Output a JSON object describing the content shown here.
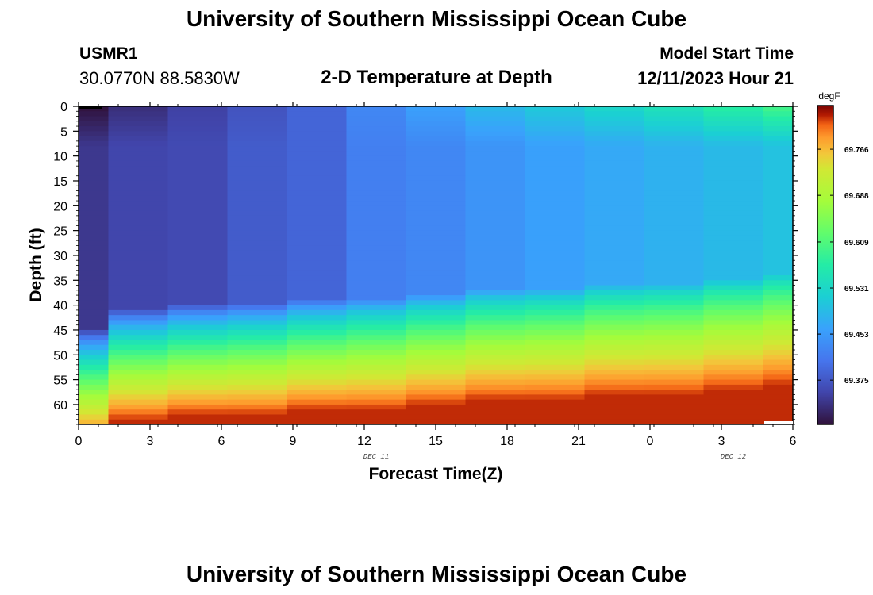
{
  "header": {
    "title": "University of Southern Mississippi Ocean Cube",
    "station_id": "USMR1",
    "coordinates": "30.0770N  88.5830W",
    "subtitle": "2-D Temperature at Depth",
    "model_start_label": "Model Start Time",
    "model_start_value": "12/11/2023 Hour 21"
  },
  "footer": {
    "title": "University of Southern Mississippi Ocean Cube"
  },
  "chart_data": {
    "type": "heatmap",
    "title": "2-D Temperature at Depth",
    "xlabel": "Forecast Time(Z)",
    "ylabel": "Depth (ft)",
    "x_tick_labels": [
      "0",
      "3",
      "6",
      "9",
      "12",
      "15",
      "18",
      "21",
      "0",
      "3",
      "6"
    ],
    "x_range_hours": [
      0,
      36
    ],
    "date_labels": [
      {
        "text": "DEC 11",
        "at_hour": 15
      },
      {
        "text": "DEC 12",
        "at_hour": 33
      }
    ],
    "y_tick_labels": [
      "0",
      "5",
      "10",
      "15",
      "20",
      "25",
      "30",
      "35",
      "40",
      "45",
      "50",
      "55",
      "60"
    ],
    "ylim": [
      0,
      64
    ],
    "colorbar": {
      "unit": "degF",
      "range": [
        69.3,
        69.84
      ],
      "ticks": [
        "69.375",
        "69.453",
        "69.531",
        "69.609",
        "69.688",
        "69.766"
      ]
    },
    "column_centers_hours": [
      0,
      3,
      6,
      9,
      12,
      15,
      18,
      21,
      24,
      27,
      30,
      33,
      36
    ],
    "columns": [
      {
        "surface": 69.3,
        "mid": 69.34,
        "thermo_depth": 50
      },
      {
        "surface": 69.33,
        "mid": 69.355,
        "thermo_depth": 46
      },
      {
        "surface": 69.35,
        "mid": 69.36,
        "thermo_depth": 45
      },
      {
        "surface": 69.37,
        "mid": 69.38,
        "thermo_depth": 45
      },
      {
        "surface": 69.39,
        "mid": 69.39,
        "thermo_depth": 44
      },
      {
        "surface": 69.43,
        "mid": 69.42,
        "thermo_depth": 44
      },
      {
        "surface": 69.46,
        "mid": 69.43,
        "thermo_depth": 43
      },
      {
        "surface": 69.49,
        "mid": 69.445,
        "thermo_depth": 42
      },
      {
        "surface": 69.51,
        "mid": 69.46,
        "thermo_depth": 42
      },
      {
        "surface": 69.53,
        "mid": 69.47,
        "thermo_depth": 41
      },
      {
        "surface": 69.55,
        "mid": 69.48,
        "thermo_depth": 41
      },
      {
        "surface": 69.575,
        "mid": 69.49,
        "thermo_depth": 40
      },
      {
        "surface": 69.6,
        "mid": 69.5,
        "thermo_depth": 39
      }
    ],
    "bottom_value": 69.82
  }
}
